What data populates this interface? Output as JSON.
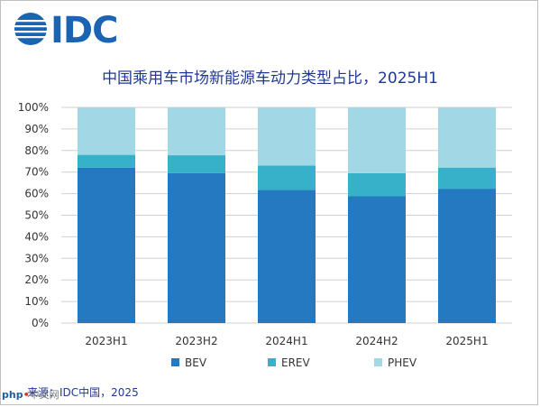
{
  "logo_text": "IDC",
  "source": "来源：IDC中国，2025",
  "watermark": {
    "prefix": "php",
    "brand": "中文网"
  },
  "colors": {
    "BEV": "#2479c0",
    "EREV": "#37b0ca",
    "PHEV": "#a2d8e6",
    "title": "#1f3a93",
    "grid": "#d0d0d0",
    "logo": "#1a64b3"
  },
  "chart_data": {
    "type": "bar",
    "stacked": true,
    "title": "中国乘用车市场新能源车动力类型占比，2025H1",
    "categories": [
      "2023H1",
      "2023H2",
      "2024H1",
      "2024H2",
      "2025H1"
    ],
    "series": [
      {
        "name": "BEV",
        "values": [
          72,
          69.5,
          61.8,
          58.8,
          62.3
        ]
      },
      {
        "name": "EREV",
        "values": [
          6,
          8.3,
          11.2,
          10.7,
          9.8
        ]
      },
      {
        "name": "PHEV",
        "values": [
          22,
          22.2,
          27,
          30.5,
          27.9
        ]
      }
    ],
    "ylim": [
      0,
      100
    ],
    "yticks": [
      "0%",
      "10%",
      "20%",
      "30%",
      "40%",
      "50%",
      "60%",
      "70%",
      "80%",
      "90%",
      "100%"
    ],
    "grid": true,
    "legend_position": "bottom"
  }
}
